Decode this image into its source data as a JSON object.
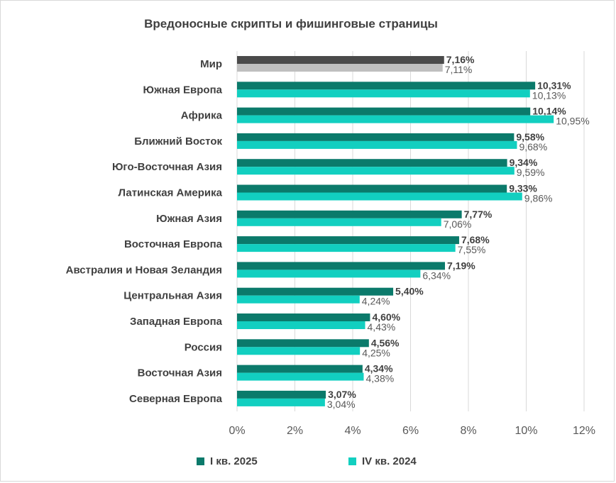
{
  "chart_data": {
    "type": "bar",
    "orientation": "horizontal",
    "title": "Вредоносные скрипты и фишинговые страницы",
    "categories": [
      "Мир",
      "Южная Европа",
      "Африка",
      "Ближний Восток",
      "Юго-Восточная Азия",
      "Латинская Америка",
      "Южная Азия",
      "Восточная Европа",
      "Австралия и Новая Зеландия",
      "Центральная Азия",
      "Западная Европа",
      "Россия",
      "Восточная Азия",
      "Северная Европа"
    ],
    "series": [
      {
        "name": "I кв. 2025",
        "color": "#0b7a6b",
        "highlight_color": "#4a4a4a",
        "values": [
          7.16,
          10.31,
          10.14,
          9.58,
          9.34,
          9.33,
          7.77,
          7.68,
          7.19,
          5.4,
          4.6,
          4.56,
          4.34,
          3.07
        ],
        "labels": [
          "7,16%",
          "10,31%",
          "10,14%",
          "9,58%",
          "9,34%",
          "9,33%",
          "7,77%",
          "7,68%",
          "7,19%",
          "5,40%",
          "4,60%",
          "4,56%",
          "4,34%",
          "3,07%"
        ]
      },
      {
        "name": "IV кв. 2024",
        "color": "#12cfc0",
        "highlight_color": "#bfbfbf",
        "values": [
          7.11,
          10.13,
          10.95,
          9.68,
          9.59,
          9.86,
          7.06,
          7.55,
          6.34,
          4.24,
          4.43,
          4.25,
          4.38,
          3.04
        ],
        "labels": [
          "7,11%",
          "10,13%",
          "10,95%",
          "9,68%",
          "9,59%",
          "9,86%",
          "7,06%",
          "7,55%",
          "6,34%",
          "4,24%",
          "4,43%",
          "4,25%",
          "4,38%",
          "3,04%"
        ]
      }
    ],
    "x_ticks": [
      "0%",
      "2%",
      "4%",
      "6%",
      "8%",
      "10%",
      "12%"
    ],
    "xlim": [
      0,
      12
    ],
    "grid": "vertical",
    "legend_position": "bottom"
  }
}
